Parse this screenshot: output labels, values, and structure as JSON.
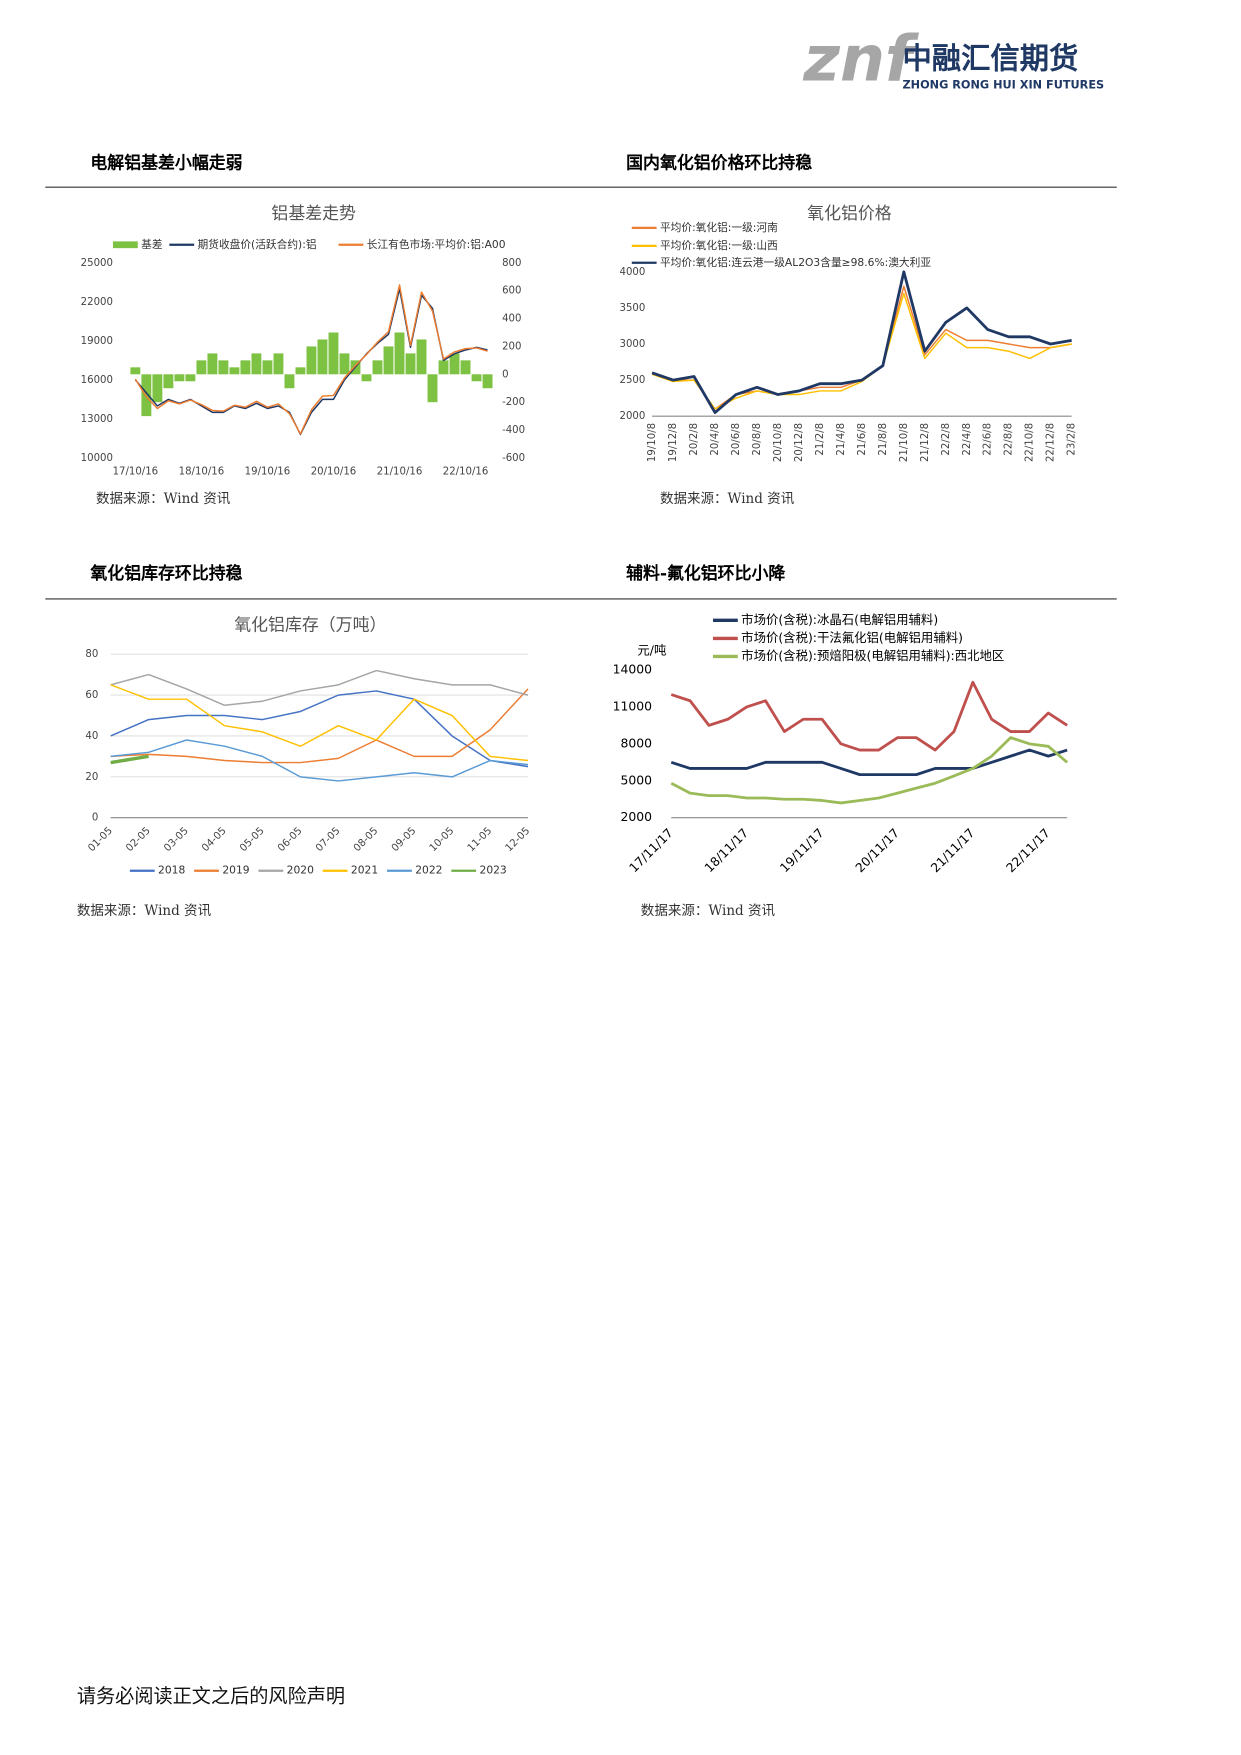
{
  "header": {
    "logo": "znf",
    "company": "中融汇信期货",
    "company_en": "ZHONG RONG HUI XIN FUTURES"
  },
  "sections": [
    "电解铝基差小幅走弱",
    "国内氧化铝价格环比持稳",
    "氧化铝库存环比持稳",
    "辅料-氟化铝环比小降"
  ],
  "sources": [
    "数据来源：Wind 资讯",
    "数据来源：Wind 资讯",
    "数据来源：Wind 资讯",
    "数据来源：Wind 资讯"
  ],
  "footer": "请务必阅读正文之后的风险声明",
  "chart_data": [
    {
      "type": "line",
      "title": "铝基差走势",
      "categories": [
        "17/10/16",
        null,
        null,
        null,
        null,
        null,
        "18/10/16",
        null,
        null,
        null,
        null,
        null,
        "19/10/16",
        null,
        null,
        null,
        null,
        null,
        "20/10/16",
        null,
        null,
        null,
        null,
        null,
        "21/10/16",
        null,
        null,
        null,
        null,
        null,
        "22/10/16",
        null,
        null
      ],
      "ylim": [
        10000,
        25000
      ],
      "yticks": [
        10000,
        13000,
        16000,
        19000,
        22000,
        25000
      ],
      "y2lim": [
        -600,
        800
      ],
      "y2ticks": [
        -600,
        -400,
        -200,
        0,
        200,
        400,
        600,
        800
      ],
      "grid": false,
      "series": [
        {
          "name": "基差",
          "type": "bar",
          "axis": "y2",
          "color": "#7dc242",
          "values": [
            50,
            -300,
            -200,
            -100,
            -50,
            -50,
            100,
            150,
            100,
            50,
            100,
            150,
            100,
            150,
            -100,
            50,
            200,
            250,
            300,
            150,
            100,
            -50,
            100,
            200,
            300,
            150,
            250,
            -200,
            100,
            150,
            100,
            -50,
            -100
          ]
        },
        {
          "name": "期货收盘价(活跃合约):铝",
          "color": "#1f3864",
          "values": [
            16000,
            15000,
            14000,
            14500,
            14200,
            14500,
            14000,
            13500,
            13500,
            14000,
            13800,
            14200,
            13800,
            14000,
            13500,
            11800,
            13500,
            14500,
            14500,
            16000,
            17000,
            18000,
            18800,
            19500,
            23000,
            18500,
            22500,
            21500,
            17500,
            18000,
            18300,
            18500,
            18300
          ]
        },
        {
          "name": "长江有色市场:平均价:铝:A00",
          "color": "#ed7d31",
          "values": [
            16050,
            14700,
            13800,
            14400,
            14150,
            14450,
            14100,
            13650,
            13600,
            14050,
            13900,
            14350,
            13900,
            14150,
            13400,
            11850,
            13700,
            14750,
            14800,
            16150,
            17100,
            17950,
            18900,
            19700,
            23300,
            18650,
            22750,
            21300,
            17600,
            18150,
            18400,
            18450,
            18200
          ]
        }
      ]
    },
    {
      "type": "line",
      "title": "氧化铝价格",
      "categories": [
        "19/10/8",
        "19/12/8",
        "20/2/8",
        "20/4/8",
        "20/6/8",
        "20/8/8",
        "20/10/8",
        "20/12/8",
        "21/2/8",
        "21/4/8",
        "21/6/8",
        "21/8/8",
        "21/10/8",
        "21/12/8",
        "22/2/8",
        "22/4/8",
        "22/6/8",
        "22/8/8",
        "22/10/8",
        "22/12/8",
        "23/2/8"
      ],
      "ylim": [
        2000,
        4000
      ],
      "yticks": [
        2000,
        2500,
        3000,
        3500,
        4000
      ],
      "grid": false,
      "series": [
        {
          "name": "平均价:氧化铝:一级:河南",
          "color": "#ed7d31",
          "values": [
            2600,
            2500,
            2500,
            2100,
            2300,
            2350,
            2300,
            2350,
            2400,
            2400,
            2500,
            2700,
            3800,
            2850,
            3200,
            3050,
            3050,
            3000,
            2950,
            2950,
            3000
          ]
        },
        {
          "name": "平均价:氧化铝:一级:山西",
          "color": "#ffc000",
          "values": [
            2580,
            2480,
            2500,
            2100,
            2250,
            2350,
            2300,
            2300,
            2350,
            2350,
            2480,
            2700,
            3700,
            2800,
            3150,
            2950,
            2950,
            2900,
            2800,
            2950,
            3000
          ]
        },
        {
          "name": "平均价:氧化铝:连云港一级AL2O3含量≥98.6%:澳大利亚",
          "color": "#1f3864",
          "values": [
            2600,
            2500,
            2550,
            2050,
            2300,
            2400,
            2300,
            2350,
            2450,
            2450,
            2500,
            2700,
            4000,
            2900,
            3300,
            3500,
            3200,
            3100,
            3100,
            3000,
            3050
          ]
        }
      ]
    },
    {
      "type": "line",
      "title": "氧化铝库存（万吨）",
      "categories": [
        "01-05",
        "02-05",
        "03-05",
        "04-05",
        "05-05",
        "06-05",
        "07-05",
        "08-05",
        "09-05",
        "10-05",
        "11-05",
        "12-05"
      ],
      "ylim": [
        0,
        80
      ],
      "yticks": [
        0,
        20,
        40,
        60,
        80
      ],
      "grid": true,
      "series": [
        {
          "name": "2018",
          "color": "#4472c4",
          "values": [
            40,
            48,
            50,
            50,
            48,
            52,
            60,
            62,
            58,
            40,
            28,
            25
          ]
        },
        {
          "name": "2019",
          "color": "#ed7d31",
          "values": [
            30,
            31,
            30,
            28,
            27,
            27,
            29,
            38,
            30,
            30,
            43,
            63
          ]
        },
        {
          "name": "2020",
          "color": "#a5a5a5",
          "values": [
            65,
            70,
            63,
            55,
            57,
            62,
            65,
            72,
            68,
            65,
            65,
            60
          ]
        },
        {
          "name": "2021",
          "color": "#ffc000",
          "values": [
            65,
            58,
            58,
            45,
            42,
            35,
            45,
            38,
            58,
            50,
            30,
            28
          ]
        },
        {
          "name": "2022",
          "color": "#5b9bd5",
          "values": [
            30,
            32,
            38,
            35,
            30,
            20,
            18,
            20,
            22,
            20,
            28,
            26
          ]
        },
        {
          "name": "2023",
          "color": "#70ad47",
          "values": [
            27,
            30,
            null,
            null,
            null,
            null,
            null,
            null,
            null,
            null,
            null,
            null
          ]
        }
      ]
    },
    {
      "type": "line",
      "title": "元/吨",
      "categories": [
        "17/11/17",
        null,
        null,
        null,
        "18/11/17",
        null,
        null,
        null,
        "19/11/17",
        null,
        null,
        null,
        "20/11/17",
        null,
        null,
        null,
        "21/11/17",
        null,
        null,
        null,
        "22/11/17",
        null
      ],
      "ylim": [
        2000,
        14000
      ],
      "yticks": [
        2000,
        5000,
        8000,
        11000,
        14000
      ],
      "grid": false,
      "series": [
        {
          "name": "市场价(含税):冰晶石(电解铝用辅料)",
          "color": "#1f3864",
          "values": [
            6500,
            6000,
            6000,
            6000,
            6000,
            6500,
            6500,
            6500,
            6500,
            6000,
            5500,
            5500,
            5500,
            5500,
            6000,
            6000,
            6000,
            6500,
            7000,
            7500,
            7000,
            7500
          ]
        },
        {
          "name": "市场价(含税):干法氟化铝(电解铝用辅料)",
          "color": "#c0504d",
          "values": [
            12000,
            11500,
            9500,
            10000,
            11000,
            11500,
            9000,
            10000,
            10000,
            8000,
            7500,
            7500,
            8500,
            8500,
            7500,
            9000,
            13000,
            10000,
            9000,
            9000,
            10500,
            9500
          ]
        },
        {
          "name": "市场价(含税):预焙阳极(电解铝用辅料):西北地区",
          "color": "#9bbb59",
          "values": [
            4800,
            4000,
            3800,
            3800,
            3600,
            3600,
            3500,
            3500,
            3400,
            3200,
            3400,
            3600,
            4000,
            4400,
            4800,
            5400,
            6000,
            7000,
            8500,
            8000,
            7800,
            6500
          ]
        }
      ]
    }
  ]
}
